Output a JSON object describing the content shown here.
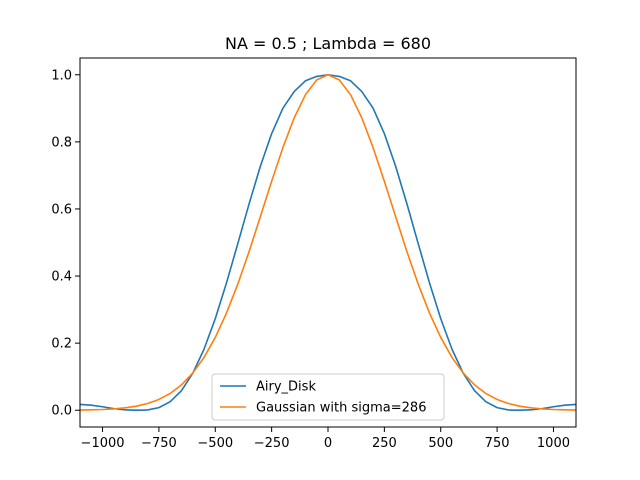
{
  "chart_data": {
    "type": "line",
    "title": "NA = 0.5 ; Lambda = 680",
    "xlabel": "",
    "ylabel": "",
    "xlim": [
      -1100,
      1100
    ],
    "ylim": [
      -0.05,
      1.05
    ],
    "x_ticks": [
      -1000,
      -750,
      -500,
      -250,
      0,
      250,
      500,
      750,
      1000
    ],
    "y_ticks": [
      0.0,
      0.2,
      0.4,
      0.6,
      0.8,
      1.0
    ],
    "x_tick_labels": [
      "−1000",
      "−750",
      "−500",
      "−250",
      "0",
      "250",
      "500",
      "750",
      "1000"
    ],
    "y_tick_labels": [
      "0.0",
      "0.2",
      "0.4",
      "0.6",
      "0.8",
      "1.0"
    ],
    "grid": false,
    "legend_position": "bottom-center",
    "series": [
      {
        "name": "Airy_Disk",
        "color": "#1f77b4",
        "x": [
          -1100,
          -1050,
          -1000,
          -950,
          -900,
          -850,
          -829,
          -800,
          -750,
          -700,
          -650,
          -600,
          -550,
          -500,
          -450,
          -400,
          -350,
          -300,
          -250,
          -200,
          -150,
          -100,
          -50,
          0,
          50,
          100,
          150,
          200,
          250,
          300,
          350,
          400,
          450,
          500,
          550,
          600,
          650,
          700,
          750,
          800,
          829,
          850,
          900,
          950,
          1000,
          1050,
          1100
        ],
        "y": [
          0.0174,
          0.0151,
          0.0103,
          0.0048,
          0.0011,
          0.0001,
          0.0,
          0.0008,
          0.0078,
          0.0255,
          0.0584,
          0.1099,
          0.1818,
          0.2731,
          0.3802,
          0.4969,
          0.6154,
          0.7273,
          0.8245,
          0.9004,
          0.95,
          0.9821,
          0.9951,
          1.0,
          0.9951,
          0.9821,
          0.95,
          0.9004,
          0.8245,
          0.7273,
          0.6154,
          0.4969,
          0.3802,
          0.2731,
          0.1818,
          0.1099,
          0.0584,
          0.0255,
          0.0078,
          0.0008,
          0.0,
          0.0001,
          0.0011,
          0.0048,
          0.0103,
          0.0151,
          0.0174
        ]
      },
      {
        "name": "Gaussian with sigma=286",
        "color": "#ff7f0e",
        "x": [
          -1100,
          -1050,
          -1000,
          -950,
          -900,
          -850,
          -800,
          -750,
          -700,
          -650,
          -600,
          -550,
          -500,
          -450,
          -400,
          -350,
          -300,
          -250,
          -200,
          -150,
          -100,
          -50,
          0,
          50,
          100,
          150,
          200,
          250,
          300,
          350,
          400,
          450,
          500,
          550,
          600,
          650,
          700,
          750,
          800,
          850,
          900,
          950,
          1000,
          1050,
          1100
        ],
        "y": [
          0.0006,
          0.0012,
          0.0022,
          0.004,
          0.0071,
          0.0121,
          0.02,
          0.0321,
          0.05,
          0.0756,
          0.1107,
          0.1574,
          0.217,
          0.29,
          0.376,
          0.4729,
          0.5771,
          0.6826,
          0.783,
          0.8715,
          0.9406,
          0.9848,
          1.0,
          0.9848,
          0.9406,
          0.8715,
          0.783,
          0.6826,
          0.5771,
          0.4729,
          0.376,
          0.29,
          0.217,
          0.1574,
          0.1107,
          0.0756,
          0.05,
          0.0321,
          0.02,
          0.0121,
          0.0071,
          0.004,
          0.0022,
          0.0012,
          0.0006
        ]
      }
    ]
  }
}
